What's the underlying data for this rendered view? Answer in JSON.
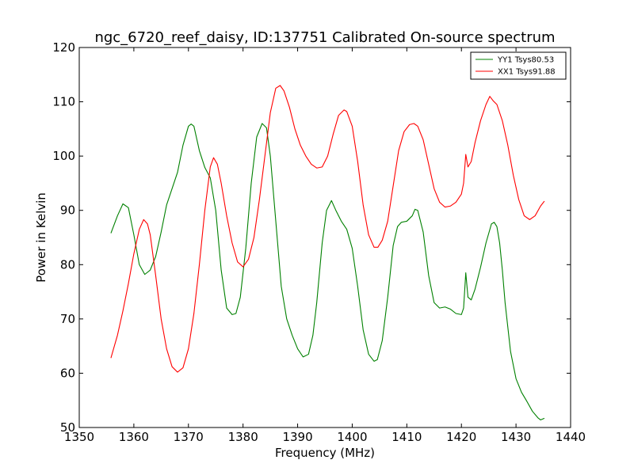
{
  "chart_data": {
    "type": "line",
    "title": "ngc_6720_reef_daisy, ID:137751 Calibrated On-source spectrum",
    "xlabel": "Frequency (MHz)",
    "ylabel": "Power in Kelvin",
    "xlim": [
      1350,
      1440
    ],
    "ylim": [
      50,
      120
    ],
    "xticks": [
      1350,
      1360,
      1370,
      1380,
      1390,
      1400,
      1410,
      1420,
      1430,
      1440
    ],
    "yticks": [
      50,
      60,
      70,
      80,
      90,
      100,
      110,
      120
    ],
    "grid": false,
    "legend_position": "top-right",
    "series": [
      {
        "name": "YY1 Tsys80.53",
        "color": "#008000",
        "x": [
          1355.8,
          1357.0,
          1358.0,
          1359.0,
          1360.0,
          1361.0,
          1362.0,
          1363.0,
          1364.0,
          1365.0,
          1366.0,
          1367.0,
          1368.0,
          1369.0,
          1370.0,
          1370.5,
          1371.0,
          1372.0,
          1373.0,
          1374.0,
          1375.0,
          1376.0,
          1377.0,
          1378.0,
          1378.7,
          1379.5,
          1380.5,
          1381.5,
          1382.5,
          1383.5,
          1384.3,
          1385.0,
          1386.0,
          1387.0,
          1388.0,
          1389.0,
          1390.0,
          1391.0,
          1392.0,
          1392.8,
          1393.5,
          1394.5,
          1395.3,
          1396.2,
          1397.0,
          1398.0,
          1399.0,
          1400.0,
          1401.0,
          1402.0,
          1403.0,
          1404.0,
          1404.6,
          1405.5,
          1406.5,
          1407.5,
          1408.3,
          1409.0,
          1410.0,
          1411.0,
          1411.5,
          1412.0,
          1413.0,
          1414.0,
          1415.0,
          1416.0,
          1417.0,
          1418.0,
          1419.0,
          1420.0,
          1420.4,
          1420.8,
          1421.2,
          1421.8,
          1422.5,
          1423.5,
          1424.5,
          1425.5,
          1426.0,
          1426.5,
          1427.0,
          1427.5,
          1428.0,
          1429.0,
          1430.0,
          1431.0,
          1432.0,
          1433.0,
          1434.0,
          1434.5,
          1435.2
        ],
        "values": [
          85.8,
          89.0,
          91.2,
          90.5,
          85.5,
          80.0,
          78.2,
          79.0,
          81.5,
          86.0,
          91.0,
          94.0,
          97.0,
          102.0,
          105.5,
          105.9,
          105.5,
          101.0,
          97.9,
          96.0,
          90.0,
          79.0,
          72.0,
          70.8,
          71.0,
          74.0,
          83.0,
          95.0,
          103.5,
          106.0,
          105.2,
          100.0,
          88.0,
          76.0,
          70.0,
          67.0,
          64.5,
          63.0,
          63.5,
          67.0,
          73.0,
          84.0,
          90.0,
          91.8,
          90.0,
          88.0,
          86.5,
          83.0,
          76.0,
          68.0,
          63.5,
          62.2,
          62.5,
          66.0,
          74.0,
          83.5,
          87.0,
          87.8,
          88.0,
          89.0,
          90.2,
          90.0,
          86.0,
          78.0,
          73.0,
          72.0,
          72.2,
          71.8,
          71.0,
          70.8,
          72.0,
          78.5,
          74.0,
          73.5,
          75.5,
          79.5,
          84.0,
          87.5,
          87.8,
          87.0,
          84.0,
          79.0,
          73.0,
          64.0,
          59.0,
          56.5,
          54.8,
          53.0,
          51.8,
          51.4,
          51.7
        ]
      },
      {
        "name": "XX1 Tsys91.88",
        "color": "#ff0000",
        "x": [
          1355.8,
          1357.0,
          1358.0,
          1359.0,
          1360.0,
          1361.0,
          1361.8,
          1362.5,
          1363.0,
          1364.0,
          1365.0,
          1366.0,
          1367.0,
          1368.0,
          1369.0,
          1370.0,
          1371.0,
          1372.0,
          1373.0,
          1374.0,
          1374.6,
          1375.3,
          1376.0,
          1377.0,
          1378.0,
          1379.0,
          1380.0,
          1381.0,
          1382.0,
          1383.0,
          1384.0,
          1385.0,
          1386.0,
          1386.8,
          1387.5,
          1388.5,
          1389.5,
          1390.5,
          1391.5,
          1392.5,
          1393.5,
          1394.5,
          1395.5,
          1396.5,
          1397.5,
          1398.5,
          1399.0,
          1400.0,
          1401.0,
          1402.0,
          1403.0,
          1404.0,
          1404.7,
          1405.5,
          1406.5,
          1407.5,
          1408.5,
          1409.5,
          1410.5,
          1411.3,
          1412.0,
          1413.0,
          1414.0,
          1415.0,
          1416.0,
          1417.0,
          1418.0,
          1419.0,
          1420.0,
          1420.4,
          1420.8,
          1421.2,
          1421.8,
          1422.5,
          1423.5,
          1424.5,
          1425.2,
          1425.8,
          1426.5,
          1427.5,
          1428.5,
          1429.5,
          1430.5,
          1431.5,
          1432.5,
          1433.5,
          1434.5,
          1435.2
        ],
        "values": [
          62.8,
          67.0,
          71.5,
          76.5,
          82.0,
          86.5,
          88.3,
          87.5,
          85.5,
          78.0,
          70.0,
          64.5,
          61.2,
          60.2,
          61.0,
          64.5,
          71.0,
          80.0,
          90.0,
          98.0,
          99.7,
          98.5,
          95.0,
          89.0,
          84.0,
          80.5,
          79.6,
          81.0,
          85.0,
          92.0,
          100.0,
          108.0,
          112.5,
          113.0,
          112.0,
          109.0,
          105.0,
          102.0,
          100.0,
          98.5,
          97.8,
          98.0,
          100.0,
          104.0,
          107.5,
          108.5,
          108.2,
          105.5,
          99.0,
          91.0,
          85.5,
          83.2,
          83.2,
          84.5,
          88.0,
          94.5,
          101.0,
          104.5,
          105.8,
          106.0,
          105.5,
          103.0,
          98.5,
          94.0,
          91.5,
          90.6,
          90.8,
          91.5,
          93.0,
          95.0,
          100.3,
          98.0,
          99.0,
          102.5,
          106.5,
          109.5,
          111.0,
          110.2,
          109.5,
          106.5,
          102.0,
          96.5,
          92.0,
          89.0,
          88.3,
          89.0,
          90.8,
          91.7
        ]
      }
    ]
  }
}
